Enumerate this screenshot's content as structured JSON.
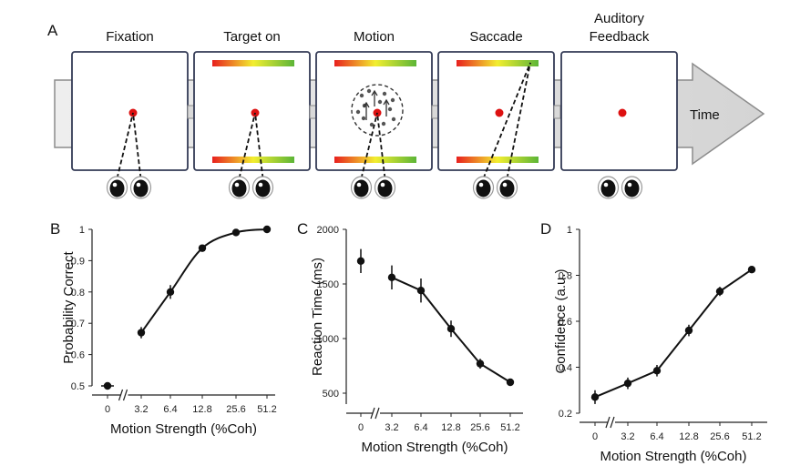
{
  "panel_a": {
    "label": "A",
    "stages": [
      "Fixation",
      "Target on",
      "Motion",
      "Saccade",
      "Auditory Feedback"
    ],
    "stage_lines": [
      [
        "Fixation"
      ],
      [
        "Target on"
      ],
      [
        "Motion"
      ],
      [
        "Saccade"
      ],
      [
        "Auditory",
        "Feedback"
      ]
    ],
    "time_label": "Time",
    "colors": {
      "fixation": "#dd1111",
      "bar_start": "#e8201e",
      "bar_mid": "#f2ee30",
      "bar_end": "#5cb537"
    }
  },
  "chart_data": [
    {
      "panel": "B",
      "type": "line",
      "xlabel": "Motion Strength (%Coh)",
      "ylabel": "Probability Correct",
      "x_tick_labels": [
        "0",
        "3.2",
        "6.4",
        "12.8",
        "25.6",
        "51.2"
      ],
      "y_ticks": [
        0.5,
        0.6,
        0.7,
        0.8,
        0.9,
        1
      ],
      "y_tick_labels": [
        "0.5",
        "0.6",
        "0.7",
        "0.8",
        "0.9",
        "1"
      ],
      "ylim": [
        0.5,
        1.0
      ],
      "axis_break": true,
      "points": [
        {
          "x": "0",
          "y": 0.5,
          "err": 0.008
        },
        {
          "x": "3.2",
          "y": 0.67,
          "err": 0.018
        },
        {
          "x": "6.4",
          "y": 0.8,
          "err": 0.022
        },
        {
          "x": "12.8",
          "y": 0.94,
          "err": 0.008
        },
        {
          "x": "25.6",
          "y": 0.99,
          "err": 0.005
        },
        {
          "x": "51.2",
          "y": 1.0,
          "err": 0.004
        }
      ],
      "line": "fit",
      "fit_from": "3.2"
    },
    {
      "panel": "C",
      "type": "line",
      "xlabel": "Motion Strength (%Coh)",
      "ylabel": "Reaction Time (ms)",
      "x_tick_labels": [
        "0",
        "3.2",
        "6.4",
        "12.8",
        "25.6",
        "51.2"
      ],
      "y_ticks": [
        500,
        1000,
        1500,
        2000
      ],
      "y_tick_labels": [
        "500",
        "1000",
        "1500",
        "2000"
      ],
      "ylim": [
        400,
        2000
      ],
      "axis_break": true,
      "points": [
        {
          "x": "0",
          "y": 1710,
          "err": 110
        },
        {
          "x": "3.2",
          "y": 1560,
          "err": 110
        },
        {
          "x": "6.4",
          "y": 1440,
          "err": 110
        },
        {
          "x": "12.8",
          "y": 1090,
          "err": 75
        },
        {
          "x": "25.6",
          "y": 770,
          "err": 45
        },
        {
          "x": "51.2",
          "y": 600,
          "err": 15
        }
      ],
      "line": "connect",
      "connect_from": "3.2"
    },
    {
      "panel": "D",
      "type": "line",
      "xlabel": "Motion Strength (%Coh)",
      "ylabel": "Confidence (a.u.)",
      "x_tick_labels": [
        "0",
        "3.2",
        "6.4",
        "12.8",
        "25.6",
        "51.2"
      ],
      "y_ticks": [
        0.2,
        0.4,
        0.6,
        0.8,
        1
      ],
      "y_tick_labels": [
        "0.2",
        "0.4",
        "0.6",
        "0.8",
        "1"
      ],
      "ylim": [
        0.2,
        1.0
      ],
      "axis_break": true,
      "points": [
        {
          "x": "0",
          "y": 0.27,
          "err": 0.03
        },
        {
          "x": "3.2",
          "y": 0.33,
          "err": 0.025
        },
        {
          "x": "6.4",
          "y": 0.385,
          "err": 0.025
        },
        {
          "x": "12.8",
          "y": 0.56,
          "err": 0.025
        },
        {
          "x": "25.6",
          "y": 0.73,
          "err": 0.02
        },
        {
          "x": "51.2",
          "y": 0.825,
          "err": 0.01
        }
      ],
      "line": "connect",
      "connect_from": "0"
    }
  ]
}
